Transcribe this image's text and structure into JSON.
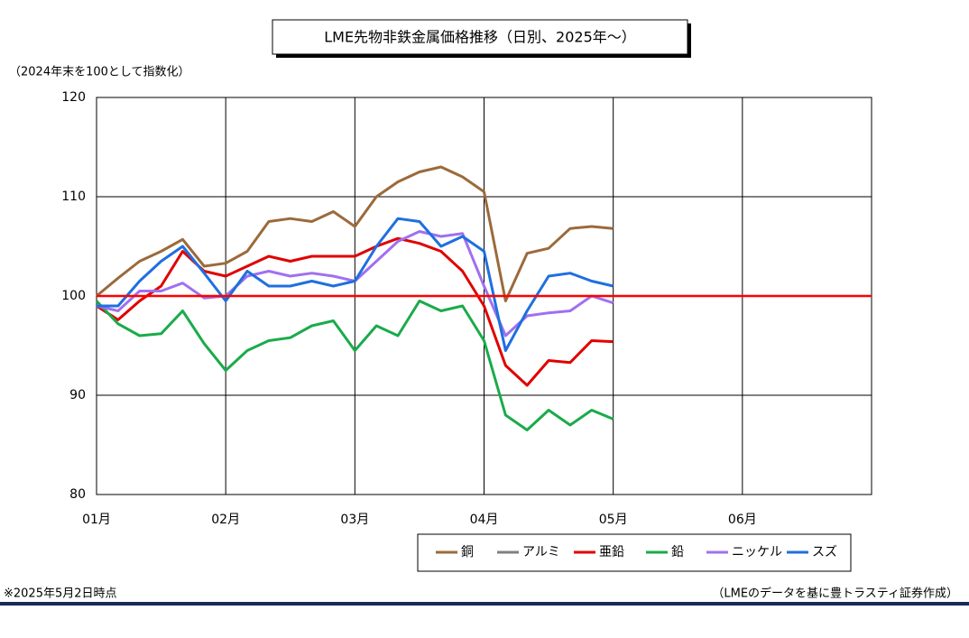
{
  "chart_data": {
    "type": "line",
    "title": "LME先物非鉄金属価格推移（日別、2025年～）",
    "y_label": "（2024年末を100として指数化）",
    "footnote": "※2025年5月2日時点",
    "source": "（LMEのデータを基に豊トラスティ証券作成）",
    "categories": [
      "01月",
      null,
      null,
      null,
      null,
      null,
      "02月",
      null,
      null,
      null,
      null,
      null,
      "03月",
      null,
      null,
      null,
      null,
      null,
      "04月",
      null,
      null,
      null,
      null,
      null,
      "05月",
      null,
      null,
      null,
      null,
      null,
      "06月",
      null,
      null,
      null,
      null,
      null,
      null
    ],
    "ylim": [
      80,
      120
    ],
    "yticks": [
      80,
      90,
      100,
      110,
      120
    ],
    "grid": true,
    "reference_line": {
      "value": 100,
      "color": "#ff0000"
    },
    "series": [
      {
        "name": "銅",
        "color": "#9b6a3a",
        "values": [
          100,
          101.8,
          103.5,
          104.5,
          105.7,
          103,
          103.3,
          104.5,
          107.5,
          107.8,
          107.5,
          108.5,
          107,
          110,
          111.5,
          112.5,
          113,
          112,
          110.5,
          99.5,
          104.3,
          104.8,
          106.8,
          107,
          106.8,
          null,
          null,
          null,
          null,
          null,
          null,
          null,
          null,
          null,
          null,
          null,
          null
        ]
      },
      {
        "name": "アルミ",
        "color": "#808080",
        "values": [
          null,
          null,
          null,
          null,
          null,
          null,
          null,
          null,
          null,
          null,
          null,
          null,
          null,
          null,
          null,
          null,
          null,
          null,
          null,
          null,
          null,
          null,
          null,
          null,
          null,
          null,
          null,
          null,
          null,
          null,
          null,
          null,
          null,
          null,
          null,
          null,
          null
        ]
      },
      {
        "name": "亜鉛",
        "color": "#e00000",
        "values": [
          99,
          97.6,
          99.5,
          101,
          104.5,
          102.5,
          102,
          103,
          104,
          103.5,
          104,
          104,
          104,
          105,
          105.8,
          105.3,
          104.5,
          102.5,
          99,
          93,
          91,
          93.5,
          93.3,
          95.5,
          95.4,
          null,
          null,
          null,
          null,
          null,
          null,
          null,
          null,
          null,
          null,
          null,
          null
        ]
      },
      {
        "name": "鉛",
        "color": "#1aab4a",
        "values": [
          99.5,
          97.2,
          96,
          96.2,
          98.5,
          95.2,
          92.5,
          94.5,
          95.5,
          95.8,
          97,
          97.5,
          94.5,
          97,
          96,
          99.5,
          98.5,
          99,
          95.5,
          88,
          86.5,
          88.5,
          87,
          88.5,
          87.6,
          null,
          null,
          null,
          null,
          null,
          null,
          null,
          null,
          null,
          null,
          null,
          null
        ]
      },
      {
        "name": "ニッケル",
        "color": "#a070f0",
        "values": [
          99,
          98.5,
          100.5,
          100.5,
          101.3,
          99.8,
          100,
          102,
          102.5,
          102,
          102.3,
          102,
          101.5,
          103.5,
          105.5,
          106.5,
          106,
          106.3,
          101,
          96,
          98,
          98.3,
          98.5,
          100,
          99.3,
          null,
          null,
          null,
          null,
          null,
          null,
          null,
          null,
          null,
          null,
          null,
          null
        ]
      },
      {
        "name": "スズ",
        "color": "#1f6fe0",
        "values": [
          99,
          99,
          101.5,
          103.5,
          105,
          102.3,
          99.5,
          102.5,
          101,
          101,
          101.5,
          101,
          101.5,
          105,
          107.8,
          107.5,
          105,
          106,
          104.5,
          94.5,
          98.5,
          102,
          102.3,
          101.5,
          101,
          null,
          null,
          null,
          null,
          null,
          null,
          null,
          null,
          null,
          null,
          null,
          null
        ]
      }
    ]
  }
}
